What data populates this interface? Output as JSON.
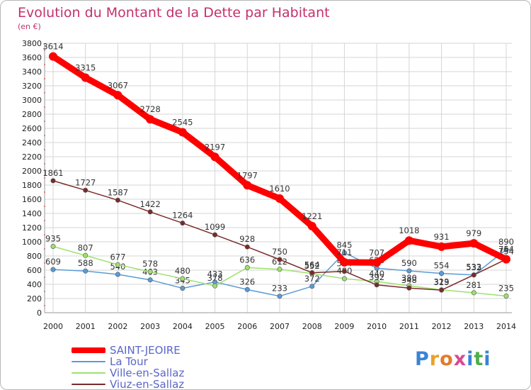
{
  "header": {
    "title": "Evolution du Montant de la Dette par Habitant",
    "subtitle": "(en €)"
  },
  "brand": {
    "text": "Proxiti",
    "letters": [
      {
        "ch": "P",
        "color": "#3a83d6"
      },
      {
        "ch": "r",
        "color": "#e9a12a"
      },
      {
        "ch": "o",
        "color": "#e27b2a"
      },
      {
        "ch": "x",
        "color": "#d84a8f"
      },
      {
        "ch": "i",
        "color": "#3a83d6"
      },
      {
        "ch": "t",
        "color": "#4fae4c"
      },
      {
        "ch": "i",
        "color": "#3a83d6"
      }
    ]
  },
  "chart_data": {
    "type": "line",
    "title": "Evolution du Montant de la Dette par Habitant",
    "subtitle": "(en €)",
    "xlabel": "",
    "ylabel": "",
    "x": [
      "2000",
      "2001",
      "2002",
      "2003",
      "2004",
      "2005",
      "2006",
      "2007",
      "2008",
      "2009",
      "2010",
      "2011",
      "2012",
      "2013",
      "2014"
    ],
    "ylim": [
      0,
      3800
    ],
    "yticks": [
      0,
      200,
      400,
      600,
      800,
      1000,
      1200,
      1400,
      1600,
      1800,
      2000,
      2200,
      2400,
      2600,
      2800,
      3000,
      3200,
      3400,
      3600,
      3800
    ],
    "grid": true,
    "legend_position": "bottom-left",
    "series": [
      {
        "name": "SAINT-JEOIRE",
        "color": "#ff0000",
        "emphasis": true,
        "values": [
          3614,
          3315,
          3067,
          2728,
          2545,
          2197,
          1797,
          1610,
          1221,
          711,
          707,
          1018,
          931,
          979,
          754
        ],
        "labels": [
          "3614",
          "3315",
          "3067",
          "2728",
          "2545",
          "2197",
          "1797",
          "1610",
          "1221",
          "711",
          "707",
          "1018",
          "931",
          "979",
          "754"
        ]
      },
      {
        "name": "La Tour",
        "color": "#5b9bd5",
        "emphasis": false,
        "values": [
          609,
          588,
          540,
          463,
          345,
          433,
          326,
          233,
          372,
          845,
          628,
          590,
          554,
          532,
          890
        ],
        "labels": [
          "609",
          "588",
          "540",
          "463",
          "345",
          "433",
          "326",
          "233",
          "372",
          "845",
          "628",
          "590",
          "554",
          "532",
          "890"
        ]
      },
      {
        "name": "Ville-en-Sallaz",
        "color": "#9ee06e",
        "emphasis": false,
        "values": [
          935,
          807,
          677,
          578,
          480,
          378,
          636,
          612,
          552,
          480,
          440,
          380,
          323,
          281,
          235
        ],
        "labels": [
          "935",
          "807",
          "677",
          "578",
          "480",
          "378",
          "636",
          "612",
          "552",
          "480",
          "440",
          "380",
          "323",
          "281",
          "235"
        ]
      },
      {
        "name": "Viuz-en-Sallaz",
        "color": "#7b2a2a",
        "emphasis": false,
        "values": [
          1861,
          1727,
          1587,
          1422,
          1264,
          1099,
          928,
          750,
          564,
          584,
          392,
          348,
          319,
          533,
          754
        ],
        "labels": [
          "1861",
          "1727",
          "1587",
          "1422",
          "1264",
          "1099",
          "928",
          "750",
          "564",
          "584",
          "392",
          "348",
          "319",
          "533",
          "754"
        ]
      }
    ]
  }
}
